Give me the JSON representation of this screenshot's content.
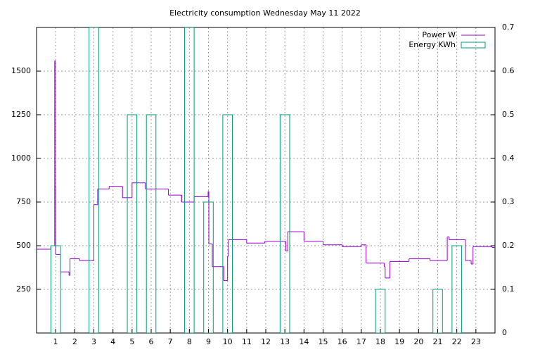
{
  "chart_data": {
    "type": "line",
    "title": "Electricity consumption Wednesday May 11 2022",
    "xlim": [
      0,
      24
    ],
    "xticks": [
      1,
      2,
      3,
      4,
      5,
      6,
      7,
      8,
      9,
      10,
      11,
      12,
      13,
      14,
      15,
      16,
      17,
      18,
      19,
      20,
      21,
      22,
      23
    ],
    "ylim": [
      0,
      1750
    ],
    "yticks": [
      250,
      500,
      750,
      1000,
      1250,
      1500
    ],
    "y2lim": [
      0,
      0.7
    ],
    "y2ticks": [
      0,
      0.1,
      0.2,
      0.3,
      0.4,
      0.5,
      0.6,
      0.7
    ],
    "grid": true,
    "legend": "top right",
    "series": [
      {
        "name": "Power W",
        "color": "#9400d3",
        "style": "steps",
        "x": [
          0,
          0.75,
          0.95,
          0.97,
          1.0,
          1.25,
          1.7,
          1.75,
          2.25,
          3.0,
          3.2,
          3.8,
          4.5,
          5.0,
          5.7,
          6.9,
          7.6,
          8.25,
          8.98,
          9.02,
          9.2,
          9.8,
          10.0,
          10.05,
          11.0,
          11.95,
          13.05,
          13.15,
          14.0,
          15.0,
          16.0,
          17.0,
          17.25,
          18.2,
          18.25,
          18.5,
          19.5,
          20.6,
          21.5,
          21.6,
          22.45,
          22.75,
          22.85,
          23.85
        ],
        "values": [
          480,
          500,
          1560,
          840,
          450,
          350,
          330,
          425,
          415,
          735,
          825,
          840,
          775,
          860,
          825,
          790,
          750,
          780,
          810,
          510,
          380,
          300,
          440,
          535,
          515,
          525,
          470,
          580,
          525,
          505,
          495,
          505,
          400,
          380,
          315,
          410,
          425,
          415,
          550,
          535,
          415,
          395,
          495,
          490
        ]
      },
      {
        "name": "Energy KWh",
        "color": "#009e73",
        "style": "boxes",
        "axis": "y2",
        "x": [
          1,
          3,
          5,
          6,
          8,
          9,
          10,
          13,
          18,
          21,
          22
        ],
        "values": [
          0.2,
          0.7,
          0.5,
          0.5,
          0.7,
          0.3,
          0.5,
          0.5,
          0.1,
          0.1,
          0.2
        ]
      }
    ]
  }
}
